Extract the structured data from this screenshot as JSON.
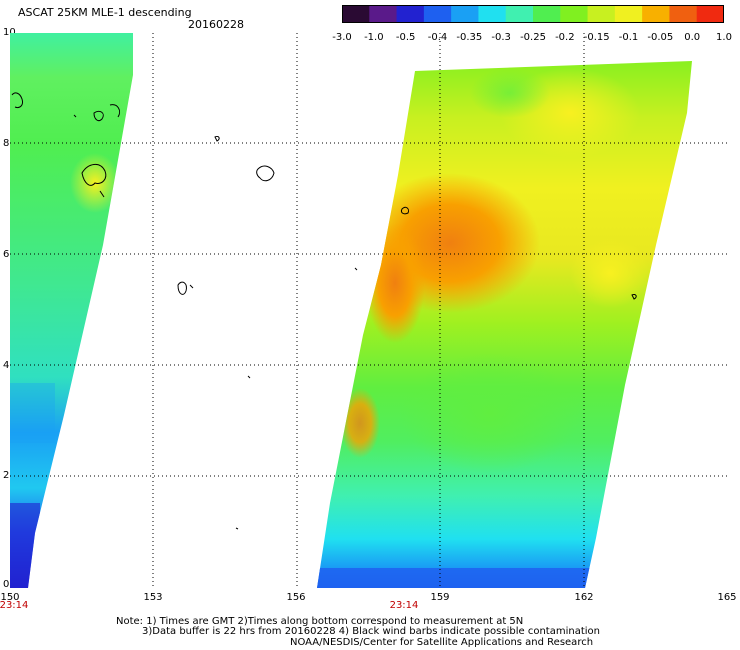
{
  "title": "ASCAT 25KM MLE-1 descending",
  "date": "20160228",
  "colorbar": {
    "labels": [
      "-3.0",
      "-1.0",
      "-0.5",
      "-0.4",
      "-0.35",
      "-0.3",
      "-0.25",
      "-0.2",
      "-0.15",
      "-0.1",
      "-0.05",
      "0.0",
      "1.0"
    ],
    "colors": [
      "#2a0a33",
      "#5a1a8a",
      "#2222d0",
      "#1e60f0",
      "#1aa0f4",
      "#20e0f0",
      "#40f0b0",
      "#50ee50",
      "#80f020",
      "#c8f020",
      "#f0f020",
      "#f8b000",
      "#f06010",
      "#f02a10"
    ]
  },
  "axes": {
    "lat_labels": [
      "10",
      "8",
      "6",
      "4",
      "2",
      "0"
    ],
    "lon_labels": [
      "150",
      "153",
      "156",
      "159",
      "162",
      "165"
    ],
    "time_labels": [
      "23:14",
      "23:14"
    ],
    "xlim": [
      150,
      165
    ],
    "ylim": [
      0,
      10
    ]
  },
  "notes": {
    "line1": "Note: 1) Times are GMT 2)Times along bottom correspond to measurement at 5N",
    "line2": "3)Data buffer is 22 hrs from 20160228 4) Black wind barbs indicate possible contamination",
    "line3": "NOAA/NESDIS/Center for Satellite Applications and Research"
  }
}
